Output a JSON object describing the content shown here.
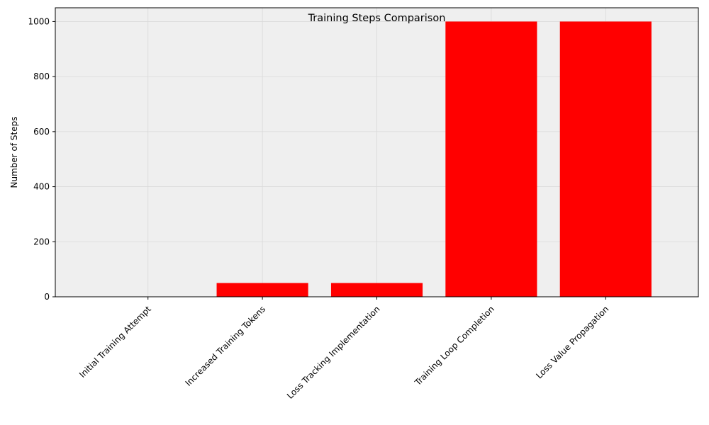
{
  "chart_data": {
    "type": "bar",
    "title": "Training Steps Comparison",
    "xlabel": "",
    "ylabel": "Number of Steps",
    "categories": [
      "Initial Training Attempt",
      "Increased Training Tokens",
      "Loss Tracking Implementation",
      "Training Loop Completion",
      "Loss Value Propagation"
    ],
    "values": [
      0,
      50,
      50,
      1000,
      1000
    ],
    "ylim": [
      0,
      1050
    ],
    "yticks": [
      0,
      200,
      400,
      600,
      800,
      1000
    ],
    "grid": true,
    "legend": "none",
    "colors": {
      "bar": "#ff0000",
      "plot_background": "#efefef",
      "grid": "#d9d9d9"
    }
  }
}
